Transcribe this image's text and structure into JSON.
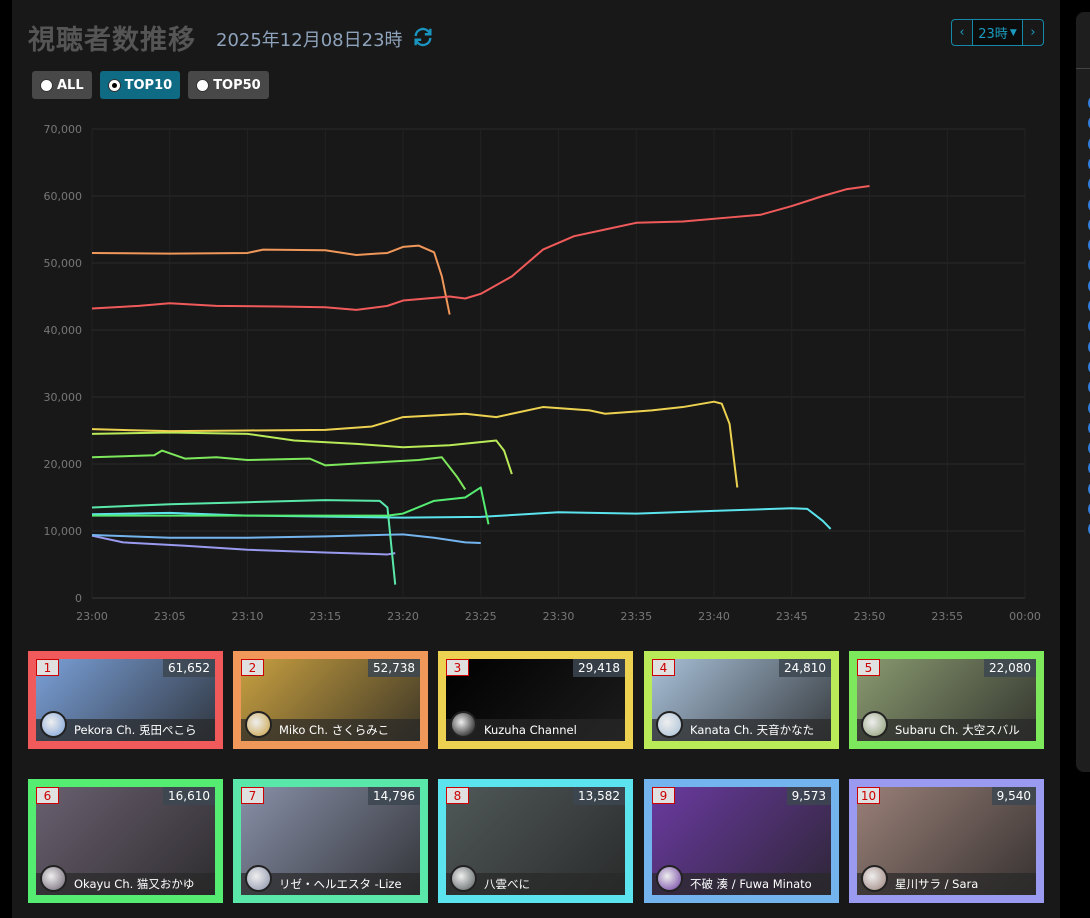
{
  "header": {
    "title": "視聴者数推移",
    "datetime": "2025年12月08日23時",
    "refresh_icon": "refresh-icon",
    "hour_select": "23時",
    "prev_label": "‹",
    "next_label": "›"
  },
  "filters": [
    {
      "label": "ALL",
      "selected": false
    },
    {
      "label": "TOP10",
      "selected": true
    },
    {
      "label": "TOP50",
      "selected": false
    }
  ],
  "chart_data": {
    "type": "line",
    "yticks": [
      "0",
      "10,000",
      "20,000",
      "30,000",
      "40,000",
      "50,000",
      "60,000",
      "70,000"
    ],
    "ylim": [
      0,
      70000
    ],
    "xticks": [
      "23:00",
      "23:05",
      "23:10",
      "23:15",
      "23:20",
      "23:25",
      "23:30",
      "23:35",
      "23:40",
      "23:45",
      "23:50",
      "23:55",
      "00:00"
    ],
    "xlim": [
      "23:00",
      "00:00"
    ],
    "grid": true,
    "series": [
      {
        "color": "#f05a5a",
        "points": [
          [
            "23:00",
            43200
          ],
          [
            "23:03",
            43600
          ],
          [
            "23:05",
            44000
          ],
          [
            "23:08",
            43600
          ],
          [
            "23:12",
            43500
          ],
          [
            "23:15",
            43400
          ],
          [
            "23:17",
            43000
          ],
          [
            "23:19",
            43600
          ],
          [
            "23:20",
            44400
          ],
          [
            "23:23",
            45000
          ],
          [
            "23:24",
            44700
          ],
          [
            "23:25",
            45400
          ],
          [
            "23:27",
            48000
          ],
          [
            "23:29",
            52000
          ],
          [
            "23:31",
            54000
          ],
          [
            "23:33",
            55000
          ],
          [
            "23:35",
            56000
          ],
          [
            "23:38",
            56200
          ],
          [
            "23:41",
            56800
          ],
          [
            "23:43",
            57200
          ],
          [
            "23:45",
            58500
          ],
          [
            "23:47",
            60000
          ],
          [
            "23:48:30",
            61000
          ],
          [
            "23:50",
            61500
          ]
        ]
      },
      {
        "color": "#f0975a",
        "points": [
          [
            "23:00",
            51500
          ],
          [
            "23:05",
            51400
          ],
          [
            "23:10",
            51500
          ],
          [
            "23:11",
            52000
          ],
          [
            "23:15",
            51900
          ],
          [
            "23:17",
            51200
          ],
          [
            "23:19",
            51500
          ],
          [
            "23:20",
            52400
          ],
          [
            "23:21",
            52600
          ],
          [
            "23:22",
            51600
          ],
          [
            "23:22:30",
            48000
          ],
          [
            "23:23",
            42300
          ]
        ]
      },
      {
        "color": "#ecd250",
        "points": [
          [
            "23:00",
            25200
          ],
          [
            "23:05",
            24900
          ],
          [
            "23:10",
            25000
          ],
          [
            "23:15",
            25100
          ],
          [
            "23:18",
            25600
          ],
          [
            "23:20",
            27000
          ],
          [
            "23:24",
            27500
          ],
          [
            "23:26",
            27000
          ],
          [
            "23:29",
            28500
          ],
          [
            "23:32",
            28000
          ],
          [
            "23:33",
            27500
          ],
          [
            "23:36",
            28000
          ],
          [
            "23:38",
            28500
          ],
          [
            "23:40",
            29300
          ],
          [
            "23:40:30",
            29000
          ],
          [
            "23:41",
            26000
          ],
          [
            "23:41:30",
            16500
          ]
        ]
      },
      {
        "color": "#b9ea58",
        "points": [
          [
            "23:00",
            24500
          ],
          [
            "23:05",
            24700
          ],
          [
            "23:10",
            24500
          ],
          [
            "23:13",
            23500
          ],
          [
            "23:17",
            23000
          ],
          [
            "23:20",
            22500
          ],
          [
            "23:23",
            22800
          ],
          [
            "23:26",
            23500
          ],
          [
            "23:26:30",
            22000
          ],
          [
            "23:27",
            18500
          ]
        ]
      },
      {
        "color": "#7ee85c",
        "points": [
          [
            "23:00",
            21000
          ],
          [
            "23:04",
            21300
          ],
          [
            "23:04:30",
            22000
          ],
          [
            "23:06",
            20800
          ],
          [
            "23:08",
            21000
          ],
          [
            "23:10",
            20600
          ],
          [
            "23:14",
            20800
          ],
          [
            "23:15",
            19800
          ],
          [
            "23:18",
            20200
          ],
          [
            "23:21",
            20600
          ],
          [
            "23:22:30",
            21000
          ],
          [
            "23:23:30",
            18000
          ],
          [
            "23:24",
            16200
          ]
        ]
      },
      {
        "color": "#55ec72",
        "points": [
          [
            "23:00",
            12300
          ],
          [
            "23:10",
            12300
          ],
          [
            "23:19",
            12300
          ],
          [
            "23:20",
            12600
          ],
          [
            "23:22",
            14500
          ],
          [
            "23:24",
            15000
          ],
          [
            "23:25",
            16500
          ],
          [
            "23:25:30",
            11000
          ]
        ]
      },
      {
        "color": "#5ae8aa",
        "points": [
          [
            "23:00",
            13500
          ],
          [
            "23:05",
            14000
          ],
          [
            "23:10",
            14300
          ],
          [
            "23:15",
            14600
          ],
          [
            "23:18:30",
            14500
          ],
          [
            "23:19",
            13500
          ],
          [
            "23:19:30",
            2000
          ]
        ]
      },
      {
        "color": "#5ce4ee",
        "points": [
          [
            "23:00",
            12500
          ],
          [
            "23:05",
            12700
          ],
          [
            "23:10",
            12300
          ],
          [
            "23:20",
            12000
          ],
          [
            "23:25",
            12100
          ],
          [
            "23:30",
            12800
          ],
          [
            "23:35",
            12600
          ],
          [
            "23:40",
            13000
          ],
          [
            "23:45",
            13400
          ],
          [
            "23:46",
            13300
          ],
          [
            "23:47",
            11500
          ],
          [
            "23:47:30",
            10300
          ]
        ]
      },
      {
        "color": "#74b4ee",
        "points": [
          [
            "23:00",
            9400
          ],
          [
            "23:05",
            9000
          ],
          [
            "23:10",
            9000
          ],
          [
            "23:15",
            9200
          ],
          [
            "23:20",
            9500
          ],
          [
            "23:22",
            9000
          ],
          [
            "23:24",
            8300
          ],
          [
            "23:25",
            8200
          ]
        ]
      },
      {
        "color": "#9a9af0",
        "points": [
          [
            "23:00",
            9300
          ],
          [
            "23:02",
            8300
          ],
          [
            "23:06",
            7800
          ],
          [
            "23:10",
            7200
          ],
          [
            "23:15",
            6800
          ],
          [
            "23:19",
            6500
          ],
          [
            "23:19:30",
            6700
          ]
        ]
      }
    ]
  },
  "cards": [
    {
      "rank": "1",
      "views": "61,652",
      "name": "Pekora Ch. 兎田ぺこら",
      "color": "#f05a5a",
      "thumb": "#7aa0d8"
    },
    {
      "rank": "2",
      "views": "52,738",
      "name": "Miko Ch. さくらみこ",
      "color": "#f0975a",
      "thumb": "#c8a040"
    },
    {
      "rank": "3",
      "views": "29,418",
      "name": "Kuzuha Channel",
      "color": "#ecd250",
      "thumb": "#000000"
    },
    {
      "rank": "4",
      "views": "24,810",
      "name": "Kanata Ch. 天音かなた",
      "color": "#b9ea58",
      "thumb": "#a8c0d8"
    },
    {
      "rank": "5",
      "views": "22,080",
      "name": "Subaru Ch. 大空スバル",
      "color": "#7ee85c",
      "thumb": "#8a9a70"
    },
    {
      "rank": "6",
      "views": "16,610",
      "name": "Okayu Ch. 猫又おかゆ",
      "color": "#55ec72",
      "thumb": "#6a6070"
    },
    {
      "rank": "7",
      "views": "14,796",
      "name": "リゼ・ヘルエスタ -Lize",
      "color": "#5ae8aa",
      "thumb": "#8890a8"
    },
    {
      "rank": "8",
      "views": "13,582",
      "name": "八雲べに",
      "color": "#5ce4ee",
      "thumb": "#505858"
    },
    {
      "rank": "9",
      "views": "9,573",
      "name": "不破 湊 / Fuwa Minato",
      "color": "#74b4ee",
      "thumb": "#6a3aa0"
    },
    {
      "rank": "10",
      "views": "9,540",
      "name": "星川サラ / Sara",
      "color": "#9a9af0",
      "thumb": "#9a8078"
    }
  ]
}
